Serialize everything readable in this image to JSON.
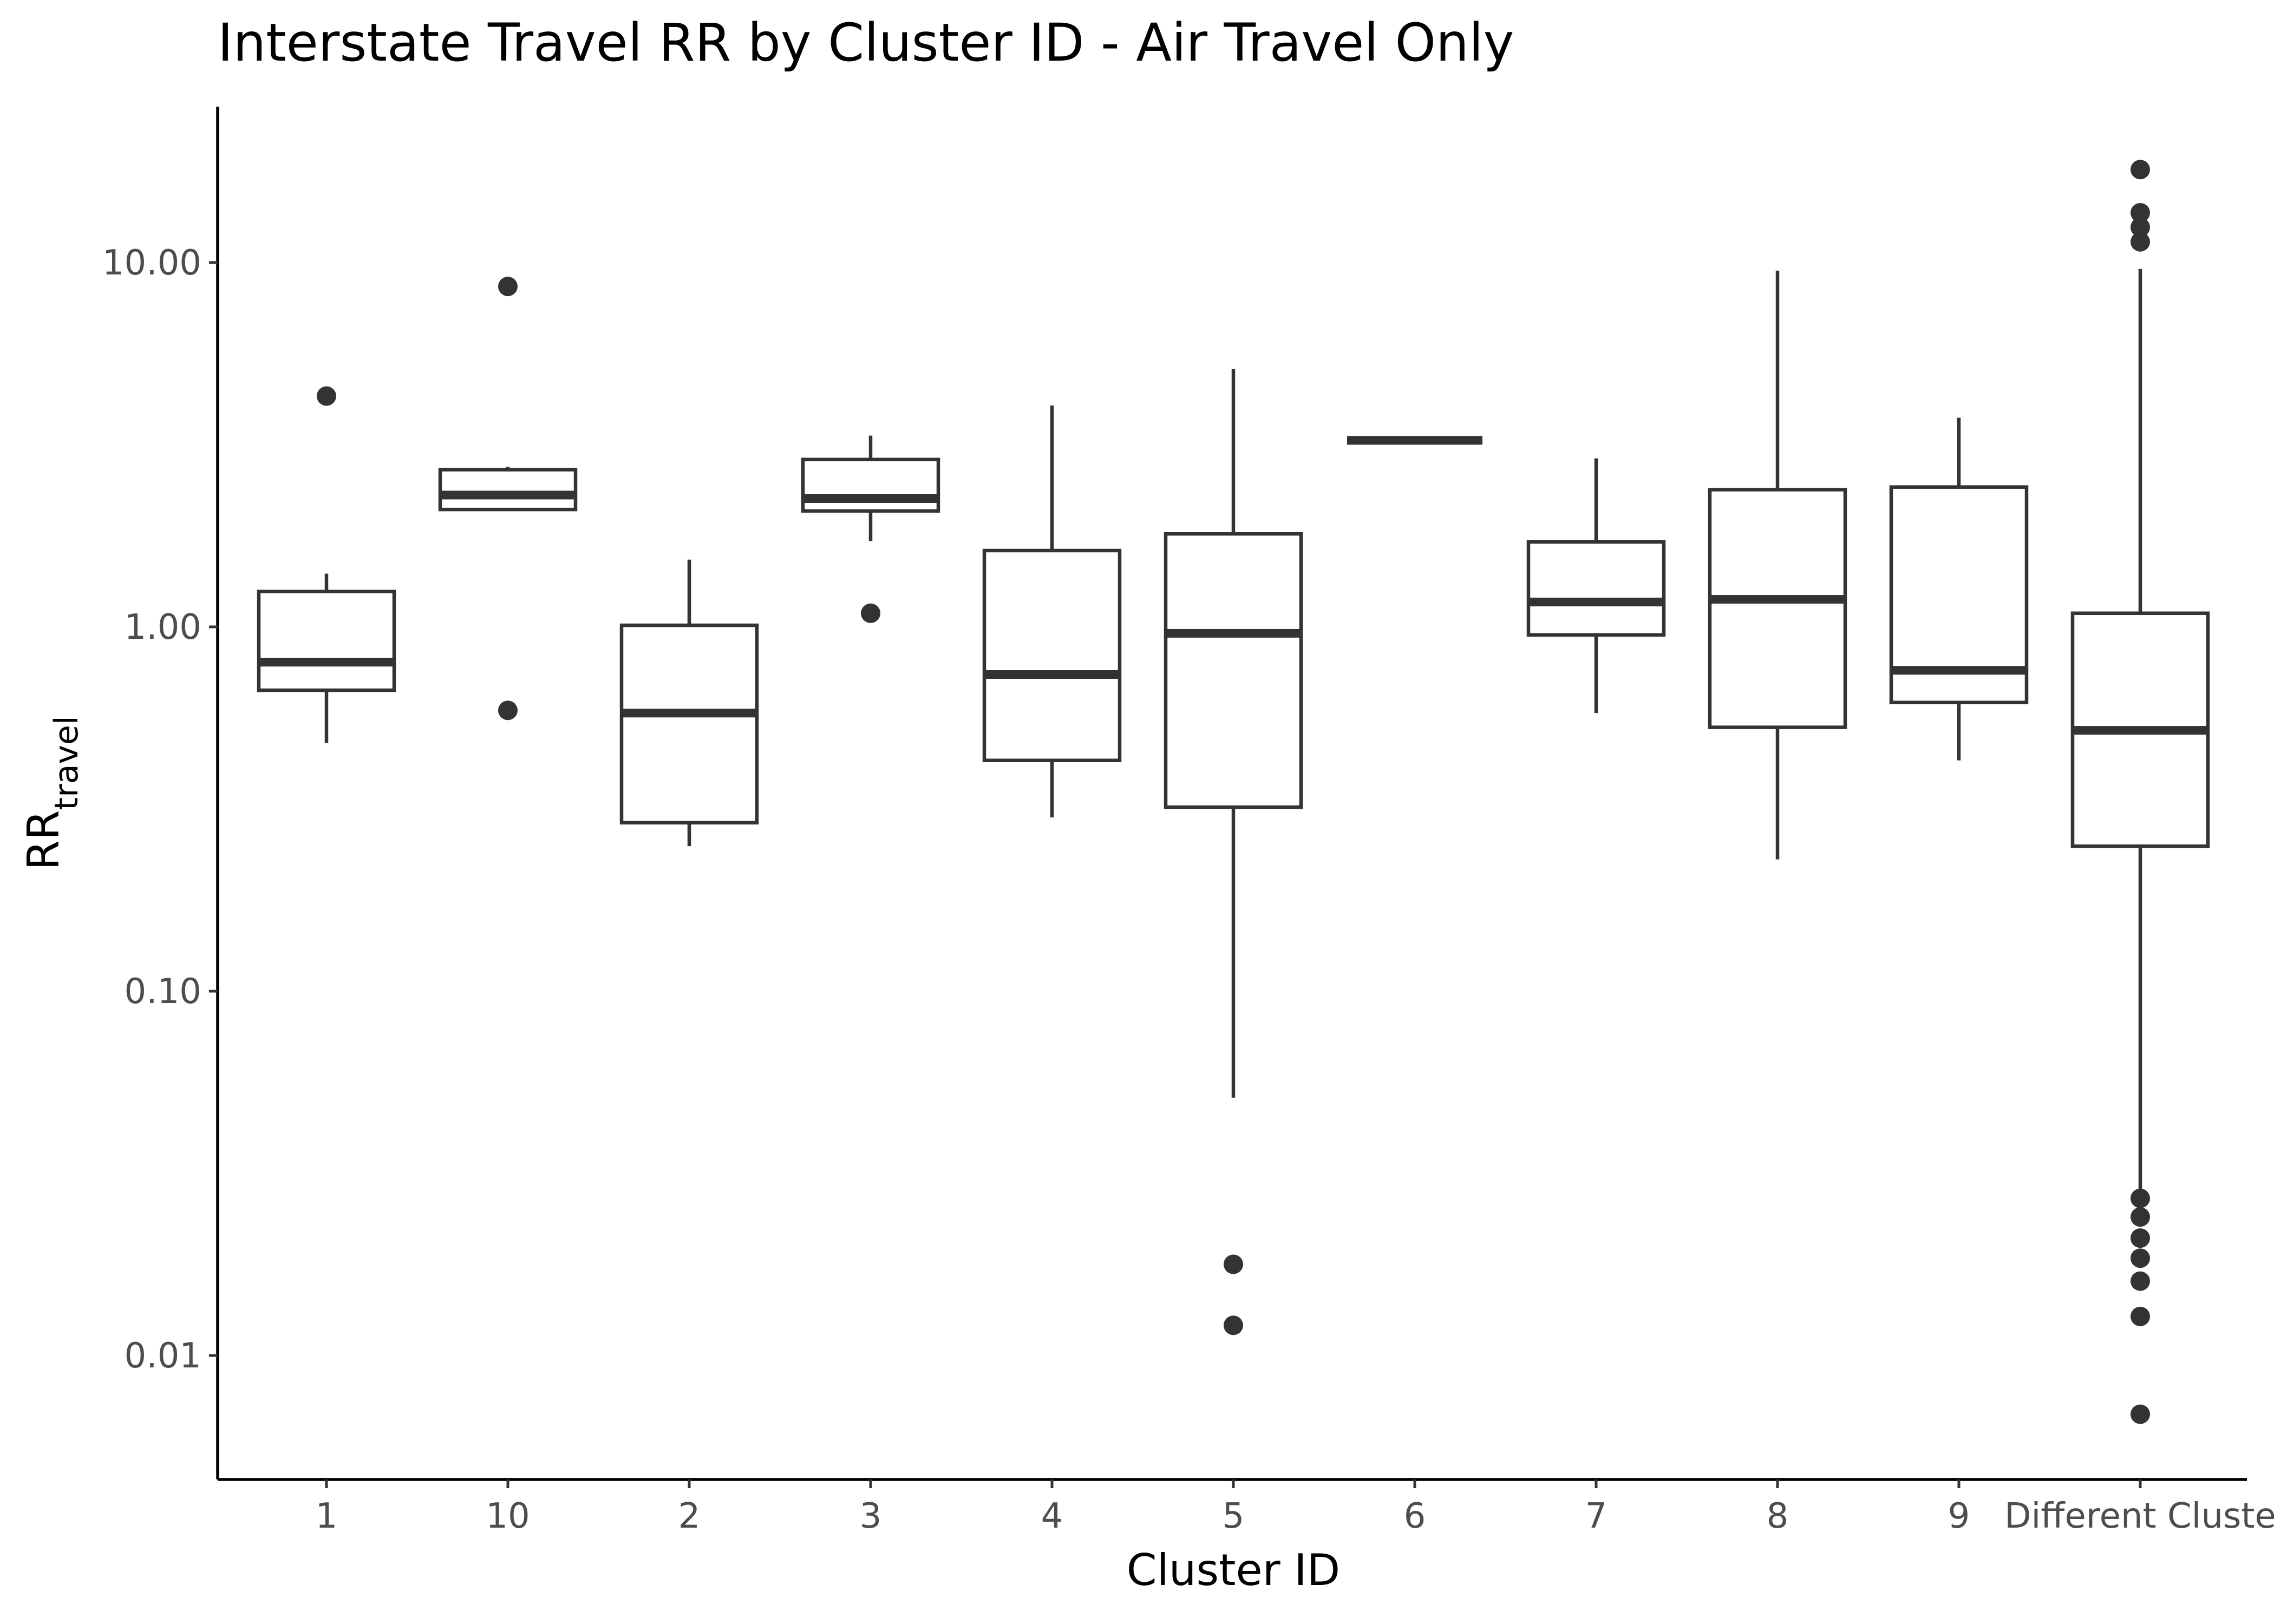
{
  "chart_data": {
    "type": "boxplot",
    "title": "Interstate Travel RR by Cluster ID - Air Travel Only",
    "xlabel": "Cluster ID",
    "ylabel": {
      "main": "RR",
      "subscript": "travel"
    },
    "y_scale": "log10",
    "ylim": [
      0.0046,
      25
    ],
    "y_ticks": [
      0.01,
      0.1,
      1,
      10
    ],
    "y_tick_labels": [
      "0.01",
      "0.10",
      "1.00",
      "10.00"
    ],
    "grid": false,
    "legend": "none",
    "colors": {
      "stroke": "#333333",
      "fill": "#ffffff",
      "axis": "#000000",
      "tick_text": "#4d4d4d"
    },
    "categories": [
      "1",
      "10",
      "2",
      "3",
      "4",
      "5",
      "6",
      "7",
      "8",
      "9",
      "Different Clusters"
    ],
    "category_tick_labels": [
      "1",
      "10",
      "2",
      "3",
      "4",
      "5",
      "6",
      "7",
      "8",
      "9",
      "Different Cluste"
    ],
    "boxes": [
      {
        "label": "1",
        "whisker_low": 0.48,
        "q1": 0.67,
        "median": 0.8,
        "q3": 1.25,
        "whisker_high": 1.4,
        "outliers": [
          4.3
        ]
      },
      {
        "label": "10",
        "whisker_low": 2.1,
        "q1": 2.1,
        "median": 2.3,
        "q3": 2.7,
        "whisker_high": 2.75,
        "outliers": [
          8.6,
          0.59
        ]
      },
      {
        "label": "2",
        "whisker_low": 0.25,
        "q1": 0.29,
        "median": 0.58,
        "q3": 1.01,
        "whisker_high": 1.53,
        "outliers": []
      },
      {
        "label": "3",
        "whisker_low": 1.72,
        "q1": 2.08,
        "median": 2.25,
        "q3": 2.88,
        "whisker_high": 3.35,
        "outliers": [
          1.09
        ]
      },
      {
        "label": "4",
        "whisker_low": 0.3,
        "q1": 0.43,
        "median": 0.74,
        "q3": 1.62,
        "whisker_high": 4.05,
        "outliers": []
      },
      {
        "label": "5",
        "whisker_low": 0.051,
        "q1": 0.32,
        "median": 0.96,
        "q3": 1.8,
        "whisker_high": 5.1,
        "outliers": [
          0.0178,
          0.0121
        ]
      },
      {
        "label": "6",
        "whisker_low": 3.25,
        "q1": 3.25,
        "median": 3.25,
        "q3": 3.25,
        "whisker_high": 3.25,
        "outliers": []
      },
      {
        "label": "7",
        "whisker_low": 0.58,
        "q1": 0.95,
        "median": 1.17,
        "q3": 1.71,
        "whisker_high": 2.9,
        "outliers": []
      },
      {
        "label": "8",
        "whisker_low": 0.23,
        "q1": 0.53,
        "median": 1.19,
        "q3": 2.38,
        "whisker_high": 9.5,
        "outliers": []
      },
      {
        "label": "9",
        "whisker_low": 0.43,
        "q1": 0.62,
        "median": 0.76,
        "q3": 2.42,
        "whisker_high": 3.75,
        "outliers": []
      },
      {
        "label": "Different Clusters",
        "whisker_low": 0.025,
        "q1": 0.25,
        "median": 0.52,
        "q3": 1.09,
        "whisker_high": 9.6,
        "outliers": [
          18.0,
          13.7,
          12.5,
          11.4,
          0.027,
          0.024,
          0.021,
          0.0185,
          0.016,
          0.0128,
          0.0069
        ]
      }
    ]
  }
}
